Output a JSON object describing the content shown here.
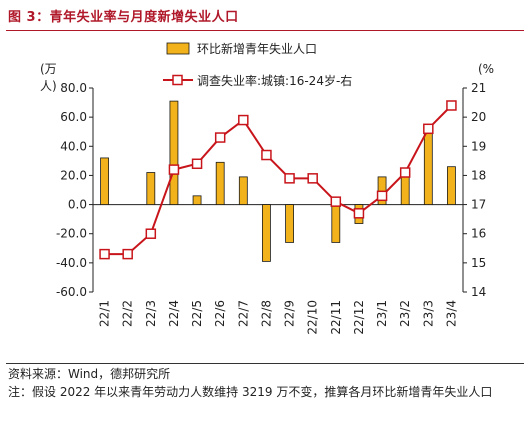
{
  "header": {
    "title": "图 3：青年失业率与月度新增失业人口"
  },
  "footer": {
    "source": "资料来源：Wind，德邦研究所",
    "note": "注：假设 2022 年以来青年劳动力人数维持 3219 万不变，推算各月环比新增青年失业人口"
  },
  "colors": {
    "title": "#b0182a",
    "bar": "#f2b21b",
    "bar_edge": "#1a1a1a",
    "line": "#c8151b",
    "marker_fill": "#ffffff"
  },
  "chart_data": {
    "type": "bar+line",
    "categories": [
      "22/1",
      "22/2",
      "22/3",
      "22/4",
      "22/5",
      "22/6",
      "22/7",
      "22/8",
      "22/9",
      "22/10",
      "22/11",
      "22/12",
      "23/1",
      "23/2",
      "23/3",
      "23/4"
    ],
    "left_axis": {
      "label_top": "(万",
      "label_second": "人)",
      "ylim": [
        -60,
        80
      ],
      "ticks": [
        80,
        60,
        40,
        20,
        0,
        -20,
        -40,
        -60
      ],
      "tick_labels": [
        "80.0",
        "60.0",
        "40.0",
        "20.0",
        "0.0",
        "-20.0",
        "-40.0",
        "-60.0"
      ]
    },
    "right_axis": {
      "label_top": "(%",
      "ylim": [
        14,
        21
      ],
      "ticks": [
        21,
        20,
        19,
        18,
        17,
        16,
        15,
        14
      ],
      "tick_labels": [
        "21",
        "20",
        "19",
        "18",
        "17",
        "16",
        "15",
        "14"
      ]
    },
    "series": [
      {
        "name": "环比新增青年失业人口",
        "type": "bar",
        "axis": "left",
        "values": [
          32,
          null,
          22,
          71,
          6,
          29,
          19,
          -39,
          -26,
          null,
          -26,
          -13,
          19,
          20,
          49,
          26
        ]
      },
      {
        "name": "调查失业率:城镇:16-24岁-右",
        "type": "line",
        "axis": "right",
        "values": [
          15.3,
          15.3,
          16.0,
          18.2,
          18.4,
          19.3,
          19.9,
          18.7,
          17.9,
          17.9,
          17.1,
          16.7,
          17.3,
          18.1,
          19.6,
          20.4
        ]
      }
    ],
    "legend": "top-center"
  }
}
